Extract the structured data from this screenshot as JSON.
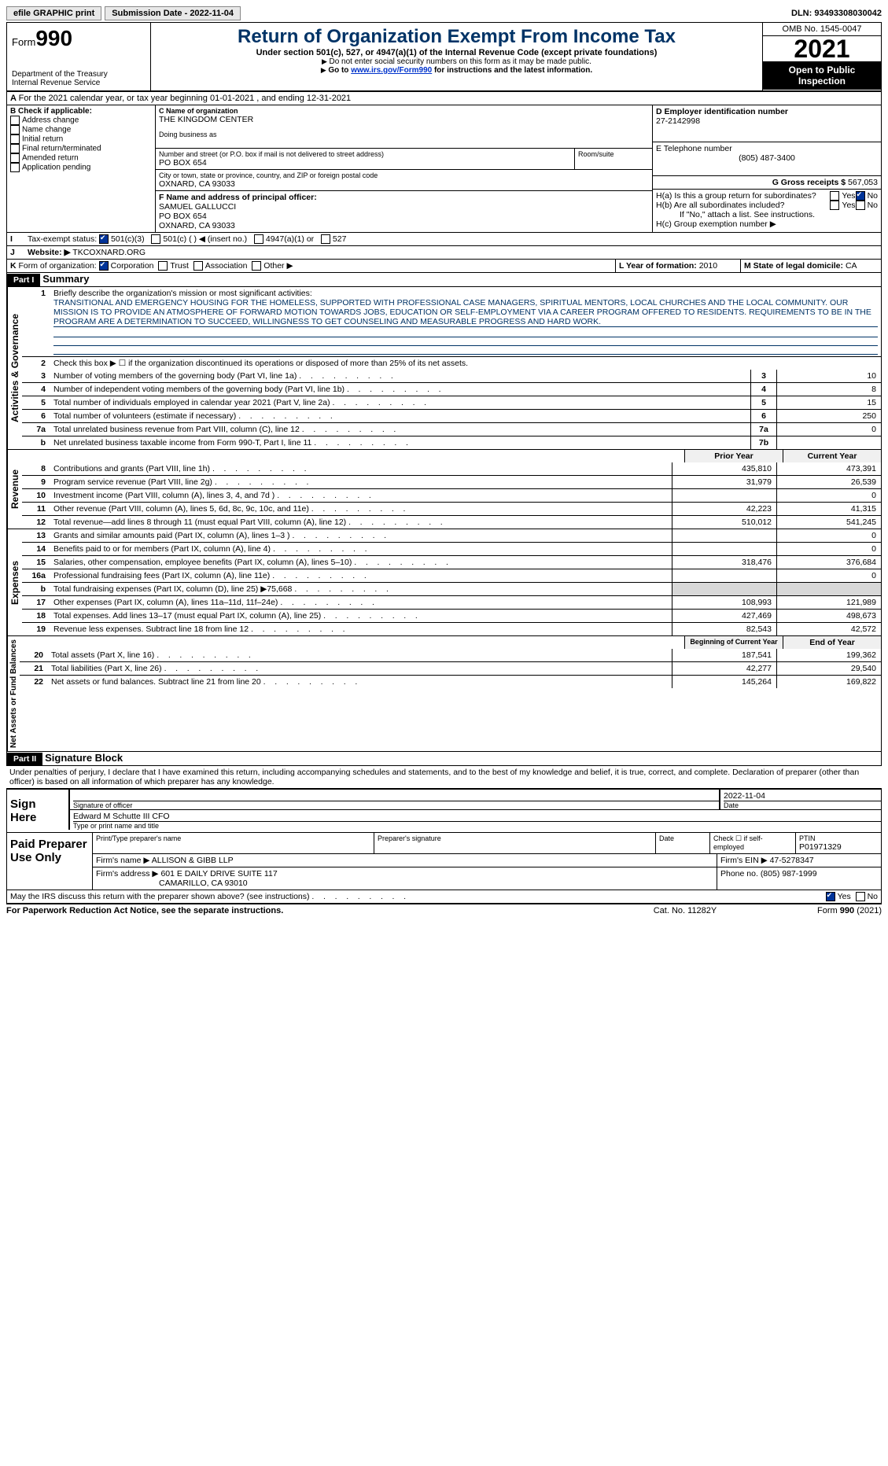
{
  "top": {
    "efile": "efile GRAPHIC print",
    "subdate": "Submission Date - 2022-11-04",
    "dln": "DLN: 93493308030042"
  },
  "hdr": {
    "form": "Form",
    "num": "990",
    "dept": "Department of the Treasury",
    "irs": "Internal Revenue Service",
    "title": "Return of Organization Exempt From Income Tax",
    "sub1": "Under section 501(c), 527, or 4947(a)(1) of the Internal Revenue Code (except private foundations)",
    "sub2": "Do not enter social security numbers on this form as it may be made public.",
    "sub3pre": "Go to ",
    "sub3link": "www.irs.gov/Form990",
    "sub3post": " for instructions and the latest information.",
    "omb": "OMB No. 1545-0047",
    "year": "2021",
    "open": "Open to Public Inspection"
  },
  "A": "For the 2021 calendar year, or tax year beginning 01-01-2021    , and ending 12-31-2021",
  "B": {
    "hdr": "B Check if applicable:",
    "items": [
      "Address change",
      "Name change",
      "Initial return",
      "Final return/terminated",
      "Amended return",
      "Application pending"
    ]
  },
  "C": {
    "lbl": "C Name of organization",
    "name": "THE KINGDOM CENTER",
    "dba": "Doing business as",
    "streetlbl": "Number and street (or P.O. box if mail is not delivered to street address)",
    "street": "PO BOX 654",
    "roomlbl": "Room/suite",
    "citylbl": "City or town, state or province, country, and ZIP or foreign postal code",
    "city": "OXNARD, CA  93033"
  },
  "D": {
    "lbl": "D Employer identification number",
    "val": "27-2142998"
  },
  "E": {
    "lbl": "E Telephone number",
    "val": "(805) 487-3400"
  },
  "G": {
    "lbl": "G Gross receipts $",
    "val": "567,053"
  },
  "F": {
    "lbl": "F  Name and address of principal officer:",
    "l1": "SAMUEL GALLUCCI",
    "l2": "PO BOX 654",
    "l3": "OXNARD, CA  93033"
  },
  "H": {
    "a": "H(a)  Is this a group return for subordinates?",
    "b": "H(b)  Are all subordinates included?",
    "bnote": "If \"No,\" attach a list. See instructions.",
    "c": "H(c)  Group exemption number ▶",
    "yes": "Yes",
    "no": "No"
  },
  "I": {
    "lbl": "Tax-exempt status:",
    "o1": "501(c)(3)",
    "o2": "501(c) (  ) ◀ (insert no.)",
    "o3": "4947(a)(1) or",
    "o4": "527"
  },
  "J": {
    "lbl": "Website: ▶",
    "val": "TKCOXNARD.ORG"
  },
  "K": {
    "lbl": "Form of organization:",
    "o1": "Corporation",
    "o2": "Trust",
    "o3": "Association",
    "o4": "Other ▶"
  },
  "L": {
    "lbl": "L Year of formation:",
    "val": "2010"
  },
  "M": {
    "lbl": "M State of legal domicile:",
    "val": "CA"
  },
  "p1": {
    "hdr": "Part I",
    "title": "Summary",
    "s1": "Activities & Governance",
    "s2": "Revenue",
    "s3": "Expenses",
    "s4": "Net Assets or Fund Balances",
    "l1": "Briefly describe the organization's mission or most significant activities:",
    "mission": "TRANSITIONAL AND EMERGENCY HOUSING FOR THE HOMELESS, SUPPORTED WITH PROFESSIONAL CASE MANAGERS, SPIRITUAL MENTORS, LOCAL CHURCHES AND THE LOCAL COMMUNITY. OUR MISSION IS TO PROVIDE AN ATMOSPHERE OF FORWARD MOTION TOWARDS JOBS, EDUCATION OR SELF-EMPLOYMENT VIA A CAREER PROGRAM OFFERED TO RESIDENTS. REQUIREMENTS TO BE IN THE PROGRAM ARE A DETERMINATION TO SUCCEED, WILLINGNESS TO GET COUNSELING AND MEASURABLE PROGRESS AND HARD WORK.",
    "l2": "Check this box ▶ ☐  if the organization discontinued its operations or disposed of more than 25% of its net assets.",
    "rows1": [
      {
        "n": "3",
        "d": "Number of voting members of the governing body (Part VI, line 1a)",
        "b": "3",
        "v": "10"
      },
      {
        "n": "4",
        "d": "Number of independent voting members of the governing body (Part VI, line 1b)",
        "b": "4",
        "v": "8"
      },
      {
        "n": "5",
        "d": "Total number of individuals employed in calendar year 2021 (Part V, line 2a)",
        "b": "5",
        "v": "15"
      },
      {
        "n": "6",
        "d": "Total number of volunteers (estimate if necessary)",
        "b": "6",
        "v": "250"
      },
      {
        "n": "7a",
        "d": "Total unrelated business revenue from Part VIII, column (C), line 12",
        "b": "7a",
        "v": "0"
      },
      {
        "n": "b",
        "d": "Net unrelated business taxable income from Form 990-T, Part I, line 11",
        "b": "7b",
        "v": ""
      }
    ],
    "pyr": "Prior Year",
    "cyr": "Current Year",
    "rows2": [
      {
        "n": "8",
        "d": "Contributions and grants (Part VIII, line 1h)",
        "p": "435,810",
        "c": "473,391"
      },
      {
        "n": "9",
        "d": "Program service revenue (Part VIII, line 2g)",
        "p": "31,979",
        "c": "26,539"
      },
      {
        "n": "10",
        "d": "Investment income (Part VIII, column (A), lines 3, 4, and 7d )",
        "p": "",
        "c": "0"
      },
      {
        "n": "11",
        "d": "Other revenue (Part VIII, column (A), lines 5, 6d, 8c, 9c, 10c, and 11e)",
        "p": "42,223",
        "c": "41,315"
      },
      {
        "n": "12",
        "d": "Total revenue—add lines 8 through 11 (must equal Part VIII, column (A), line 12)",
        "p": "510,012",
        "c": "541,245"
      }
    ],
    "rows3": [
      {
        "n": "13",
        "d": "Grants and similar amounts paid (Part IX, column (A), lines 1–3 )",
        "p": "",
        "c": "0"
      },
      {
        "n": "14",
        "d": "Benefits paid to or for members (Part IX, column (A), line 4)",
        "p": "",
        "c": "0"
      },
      {
        "n": "15",
        "d": "Salaries, other compensation, employee benefits (Part IX, column (A), lines 5–10)",
        "p": "318,476",
        "c": "376,684"
      },
      {
        "n": "16a",
        "d": "Professional fundraising fees (Part IX, column (A), line 11e)",
        "p": "",
        "c": "0"
      },
      {
        "n": "b",
        "d": "Total fundraising expenses (Part IX, column (D), line 25) ▶75,668",
        "p": "grey",
        "c": "grey"
      },
      {
        "n": "17",
        "d": "Other expenses (Part IX, column (A), lines 11a–11d, 11f–24e)",
        "p": "108,993",
        "c": "121,989"
      },
      {
        "n": "18",
        "d": "Total expenses. Add lines 13–17 (must equal Part IX, column (A), line 25)",
        "p": "427,469",
        "c": "498,673"
      },
      {
        "n": "19",
        "d": "Revenue less expenses. Subtract line 18 from line 12",
        "p": "82,543",
        "c": "42,572"
      }
    ],
    "bcy": "Beginning of Current Year",
    "eoy": "End of Year",
    "rows4": [
      {
        "n": "20",
        "d": "Total assets (Part X, line 16)",
        "p": "187,541",
        "c": "199,362"
      },
      {
        "n": "21",
        "d": "Total liabilities (Part X, line 26)",
        "p": "42,277",
        "c": "29,540"
      },
      {
        "n": "22",
        "d": "Net assets or fund balances. Subtract line 21 from line 20",
        "p": "145,264",
        "c": "169,822"
      }
    ]
  },
  "p2": {
    "hdr": "Part II",
    "title": "Signature Block",
    "decl": "Under penalties of perjury, I declare that I have examined this return, including accompanying schedules and statements, and to the best of my knowledge and belief, it is true, correct, and complete. Declaration of preparer (other than officer) is based on all information of which preparer has any knowledge.",
    "sign": "Sign Here",
    "sigoff": "Signature of officer",
    "date": "Date",
    "sigdate": "2022-11-04",
    "name": "Edward M Schutte III CFO",
    "namelbl": "Type or print name and title",
    "paid": "Paid Preparer Use Only",
    "pname": "Print/Type preparer's name",
    "psig": "Preparer's signature",
    "pdate": "Date",
    "chkself": "Check ☐ if self-employed",
    "ptin": "PTIN",
    "ptinval": "P01971329",
    "firm": "Firm's name    ▶",
    "firmval": "ALLISON & GIBB LLP",
    "ein": "Firm's EIN ▶",
    "einval": "47-5278347",
    "addr": "Firm's address ▶",
    "addrval": "601 E DAILY DRIVE SUITE 117",
    "addr2": "CAMARILLO, CA  93010",
    "phone": "Phone no.",
    "phoneval": "(805) 987-1999",
    "may": "May the IRS discuss this return with the preparer shown above? (see instructions)",
    "yes": "Yes",
    "no": "No"
  },
  "foot": {
    "pra": "For Paperwork Reduction Act Notice, see the separate instructions.",
    "cat": "Cat. No. 11282Y",
    "form": "Form 990 (2021)"
  }
}
